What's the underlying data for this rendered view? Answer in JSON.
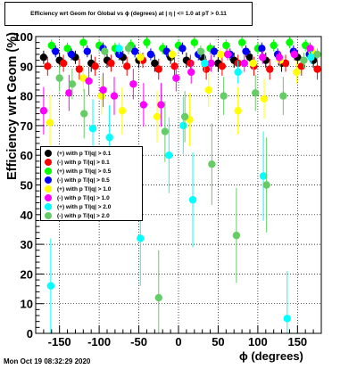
{
  "chart_data": {
    "type": "scatter",
    "title": "Efficiency wrt Geom for Global vs ϕ (degrees) at | η | <= 1.0 at pT > 0.11",
    "xlabel": "ϕ (degrees)",
    "ylabel": "Efficiency wrt Geom (%)",
    "xlim": [
      -180,
      180
    ],
    "ylim": [
      0,
      100
    ],
    "xticks": [
      -150,
      -100,
      -50,
      0,
      50,
      100,
      150
    ],
    "yticks": [
      0,
      10,
      20,
      30,
      40,
      50,
      60,
      70,
      80,
      90,
      100
    ],
    "grid": true,
    "legend_position": "middle-left",
    "series": [
      {
        "name": "(+) with p T/|q| > 0.1",
        "color": "#000000",
        "x": [
          -170,
          -150,
          -130,
          -110,
          -90,
          -70,
          -50,
          -30,
          -10,
          10,
          30,
          50,
          70,
          90,
          110,
          130,
          150,
          170
        ],
        "y": [
          93,
          92,
          93,
          91,
          92,
          93,
          92,
          91,
          93,
          92,
          93,
          91,
          92,
          93,
          92,
          91,
          93,
          92
        ]
      },
      {
        "name": "(-) with p T/|q| > 0.1",
        "color": "#ff0000",
        "x": [
          -165,
          -145,
          -125,
          -105,
          -85,
          -65,
          -45,
          -25,
          -5,
          15,
          35,
          55,
          75,
          95,
          115,
          135,
          155,
          175
        ],
        "y": [
          90,
          91,
          89,
          90,
          91,
          90,
          92,
          89,
          90,
          91,
          89,
          90,
          91,
          90,
          89,
          91,
          90,
          89
        ]
      },
      {
        "name": "(+) with p T/|q| > 0.5",
        "color": "#00ff00",
        "x": [
          -160,
          -140,
          -120,
          -100,
          -80,
          -60,
          -40,
          -20,
          0,
          20,
          40,
          60,
          80,
          100,
          120,
          140,
          160
        ],
        "y": [
          97,
          96,
          98,
          97,
          96,
          97,
          98,
          96,
          97,
          98,
          96,
          97,
          98,
          96,
          97,
          98,
          97
        ]
      },
      {
        "name": "(-) with p T/|q| > 0.5",
        "color": "#0000ff",
        "x": [
          -155,
          -135,
          -115,
          -95,
          -75,
          -55,
          -35,
          -15,
          5,
          25,
          45,
          65,
          85,
          105,
          125,
          145,
          165
        ],
        "y": [
          95,
          94,
          95,
          96,
          94,
          95,
          94,
          95,
          96,
          94,
          95,
          94,
          95,
          96,
          94,
          95,
          94
        ]
      },
      {
        "name": "(+) with p T/|q| > 1.0",
        "color": "#ffff00",
        "x": [
          -162,
          -120,
          -97,
          -71,
          -48,
          -27,
          -8,
          14,
          38,
          53,
          75,
          94,
          108,
          128,
          149,
          168
        ],
        "y": [
          71,
          86,
          80,
          75,
          93,
          73,
          94,
          72,
          82,
          94,
          75,
          91,
          79,
          92,
          88,
          95
        ]
      },
      {
        "name": "(-) with p T/|q| > 1.0",
        "color": "#ff00ff",
        "x": [
          -170,
          -138,
          -113,
          -95,
          -81,
          -57,
          -44,
          -22,
          -3,
          16,
          41,
          62,
          83,
          106,
          127,
          146,
          166
        ],
        "y": [
          75,
          81,
          85,
          82,
          80,
          84,
          77,
          77,
          86,
          88,
          91,
          94,
          91,
          93,
          93,
          94,
          96
        ]
      },
      {
        "name": "(+) with p T/|q| > 2.0",
        "color": "#00ffff",
        "x": [
          -161,
          -108,
          -87,
          -75,
          -48,
          -12,
          6,
          18,
          33,
          75,
          107,
          137,
          167
        ],
        "y": [
          16,
          69,
          66,
          96,
          32,
          60,
          70,
          45,
          91,
          88,
          53,
          5,
          93
        ]
      },
      {
        "name": "(-) with p T/|q| > 2.0",
        "color": "#66cc66",
        "x": [
          -150,
          -134,
          -119,
          -93,
          -63,
          -25,
          -17,
          8,
          28,
          42,
          57,
          73,
          97,
          111,
          132,
          158,
          175
        ],
        "y": [
          86,
          84,
          74,
          95,
          96,
          12,
          68,
          73,
          95,
          57,
          80,
          33,
          81,
          50,
          80,
          92,
          94
        ]
      }
    ]
  },
  "timestamp": "Mon Oct 19 08:32:29 2020"
}
